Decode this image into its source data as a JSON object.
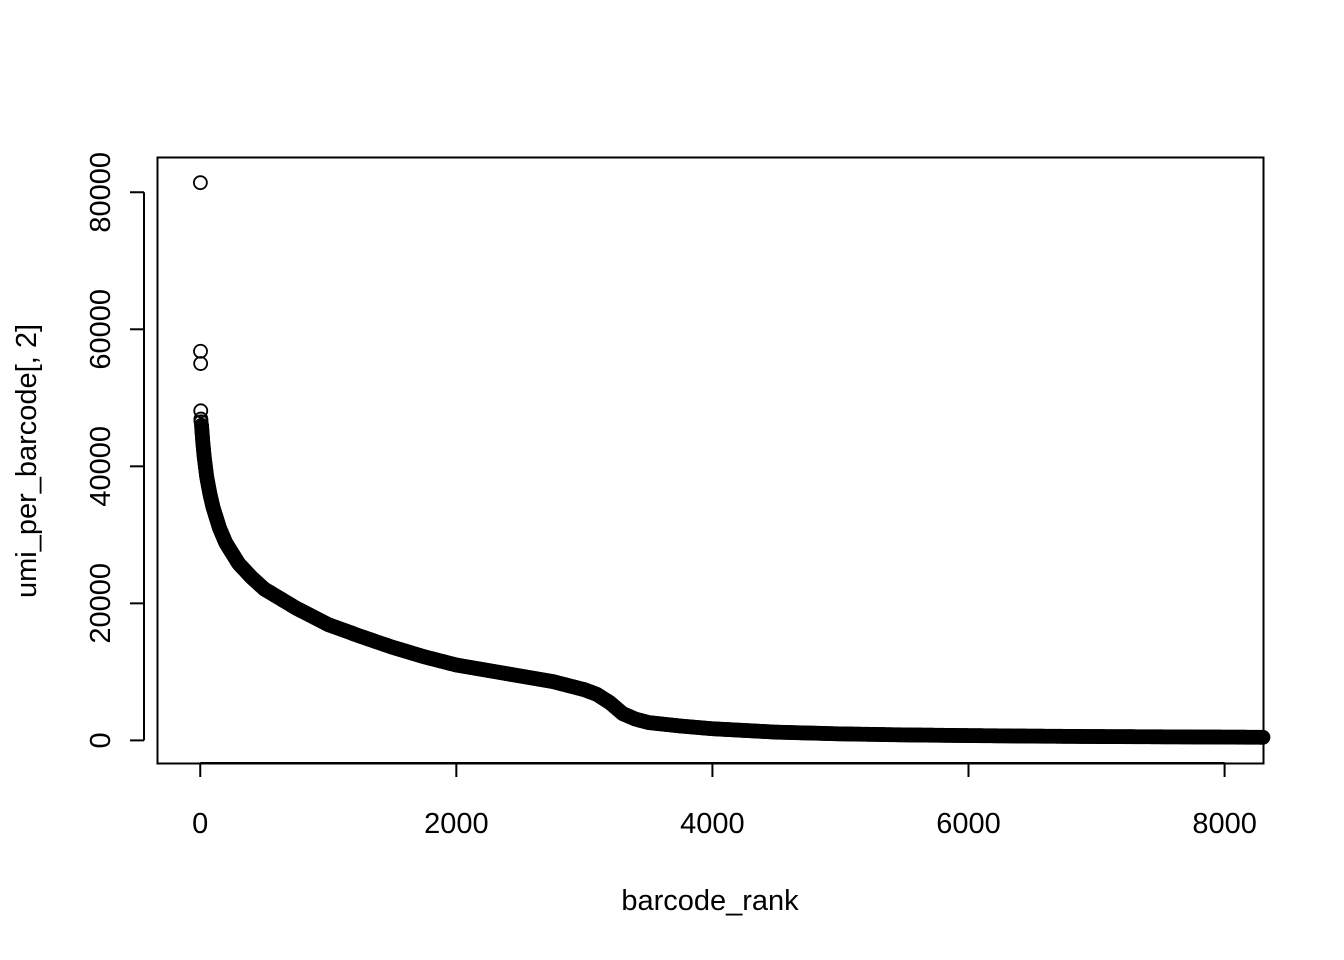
{
  "chart_data": {
    "type": "scatter",
    "title": "",
    "xlabel": "barcode_rank",
    "ylabel": "umi_per_barcode[, 2]",
    "xlim": [
      -330,
      8300
    ],
    "ylim": [
      -3300,
      85000
    ],
    "x_ticks": [
      {
        "value": 0,
        "label": "0"
      },
      {
        "value": 2000,
        "label": "2000"
      },
      {
        "value": 4000,
        "label": "4000"
      },
      {
        "value": 6000,
        "label": "6000"
      },
      {
        "value": 8000,
        "label": "8000"
      }
    ],
    "y_ticks": [
      {
        "value": 0,
        "label": "0"
      },
      {
        "value": 20000,
        "label": "20000"
      },
      {
        "value": 40000,
        "label": "40000"
      },
      {
        "value": 60000,
        "label": "60000"
      },
      {
        "value": 80000,
        "label": "80000"
      }
    ],
    "marker": "open-circle",
    "marker_color": "#000000",
    "grid": false,
    "legend": "none",
    "series": [
      {
        "outliers": [
          {
            "x": 1,
            "y": 81400
          },
          {
            "x": 2,
            "y": 56800
          },
          {
            "x": 3,
            "y": 55000
          },
          {
            "x": 4,
            "y": 48100
          },
          {
            "x": 5,
            "y": 46900
          },
          {
            "x": 6,
            "y": 46500
          }
        ],
        "curve": [
          {
            "x": 10,
            "y": 46000
          },
          {
            "x": 20,
            "y": 43500
          },
          {
            "x": 30,
            "y": 41500
          },
          {
            "x": 40,
            "y": 40000
          },
          {
            "x": 50,
            "y": 38500
          },
          {
            "x": 75,
            "y": 36000
          },
          {
            "x": 100,
            "y": 34000
          },
          {
            "x": 150,
            "y": 31000
          },
          {
            "x": 200,
            "y": 28800
          },
          {
            "x": 300,
            "y": 25800
          },
          {
            "x": 400,
            "y": 23800
          },
          {
            "x": 500,
            "y": 22100
          },
          {
            "x": 750,
            "y": 19300
          },
          {
            "x": 1000,
            "y": 16900
          },
          {
            "x": 1250,
            "y": 15200
          },
          {
            "x": 1500,
            "y": 13600
          },
          {
            "x": 1750,
            "y": 12200
          },
          {
            "x": 2000,
            "y": 11000
          },
          {
            "x": 2250,
            "y": 10200
          },
          {
            "x": 2500,
            "y": 9400
          },
          {
            "x": 2750,
            "y": 8600
          },
          {
            "x": 3000,
            "y": 7400
          },
          {
            "x": 3100,
            "y": 6700
          },
          {
            "x": 3200,
            "y": 5500
          },
          {
            "x": 3300,
            "y": 3900
          },
          {
            "x": 3400,
            "y": 3100
          },
          {
            "x": 3500,
            "y": 2600
          },
          {
            "x": 3750,
            "y": 2100
          },
          {
            "x": 4000,
            "y": 1700
          },
          {
            "x": 4500,
            "y": 1200
          },
          {
            "x": 5000,
            "y": 950
          },
          {
            "x": 5500,
            "y": 800
          },
          {
            "x": 6000,
            "y": 700
          },
          {
            "x": 6500,
            "y": 620
          },
          {
            "x": 7000,
            "y": 560
          },
          {
            "x": 7500,
            "y": 520
          },
          {
            "x": 8000,
            "y": 480
          },
          {
            "x": 8300,
            "y": 450
          }
        ]
      }
    ]
  }
}
